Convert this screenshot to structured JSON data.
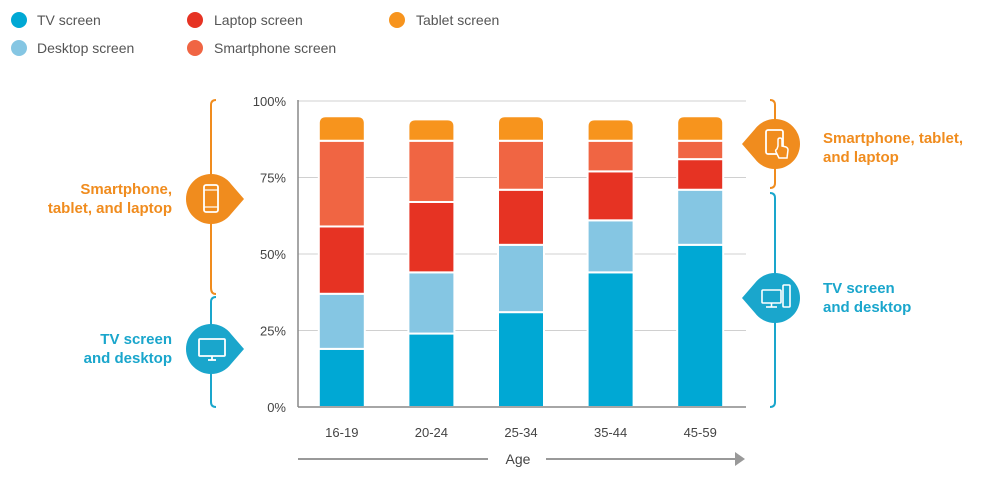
{
  "colors": {
    "tv": "#00a8d4",
    "desktop": "#85c6e3",
    "laptop": "#e63323",
    "smartphone": "#f06543",
    "tablet": "#f7941d",
    "grid": "#d0d0d0",
    "axis": "#888888",
    "orange_group": "#f08c1e",
    "blue_group": "#1aa6cc"
  },
  "icons": {
    "left_top": "smartphone-icon",
    "left_bottom": "monitor-icon",
    "right_top": "tablet-touch-icon",
    "right_bottom": "desktop-tower-icon"
  },
  "side_labels": {
    "left_top_line1": "Smartphone,",
    "left_top_line2": "tablet, and laptop",
    "left_bottom_line1": "TV screen",
    "left_bottom_line2": "and desktop",
    "right_top_line1": "Smartphone, tablet,",
    "right_top_line2": "and laptop",
    "right_bottom_line1": "TV screen",
    "right_bottom_line2": "and desktop"
  },
  "chart_data": {
    "type": "bar",
    "stacked": true,
    "title": "",
    "xlabel": "Age",
    "ylabel": "",
    "ylim": [
      0,
      100
    ],
    "y_ticks": [
      "0%",
      "25%",
      "50%",
      "75%",
      "100%"
    ],
    "categories": [
      "16-19",
      "20-24",
      "25-34",
      "35-44",
      "45-59"
    ],
    "grid": true,
    "legend_position": "top-left",
    "series": [
      {
        "name": "TV screen",
        "key": "tv",
        "values": [
          19,
          24,
          31,
          44,
          53
        ]
      },
      {
        "name": "Desktop screen",
        "key": "desktop",
        "values": [
          18,
          20,
          22,
          17,
          18
        ]
      },
      {
        "name": "Laptop screen",
        "key": "laptop",
        "values": [
          22,
          23,
          18,
          16,
          10
        ]
      },
      {
        "name": "Smartphone screen",
        "key": "smartphone",
        "values": [
          28,
          20,
          16,
          10,
          6
        ]
      },
      {
        "name": "Tablet screen",
        "key": "tablet",
        "values": [
          8,
          7,
          8,
          7,
          8
        ]
      }
    ],
    "legend_order": [
      "TV screen",
      "Laptop screen",
      "Tablet screen",
      "Desktop screen",
      "Smartphone screen"
    ]
  }
}
